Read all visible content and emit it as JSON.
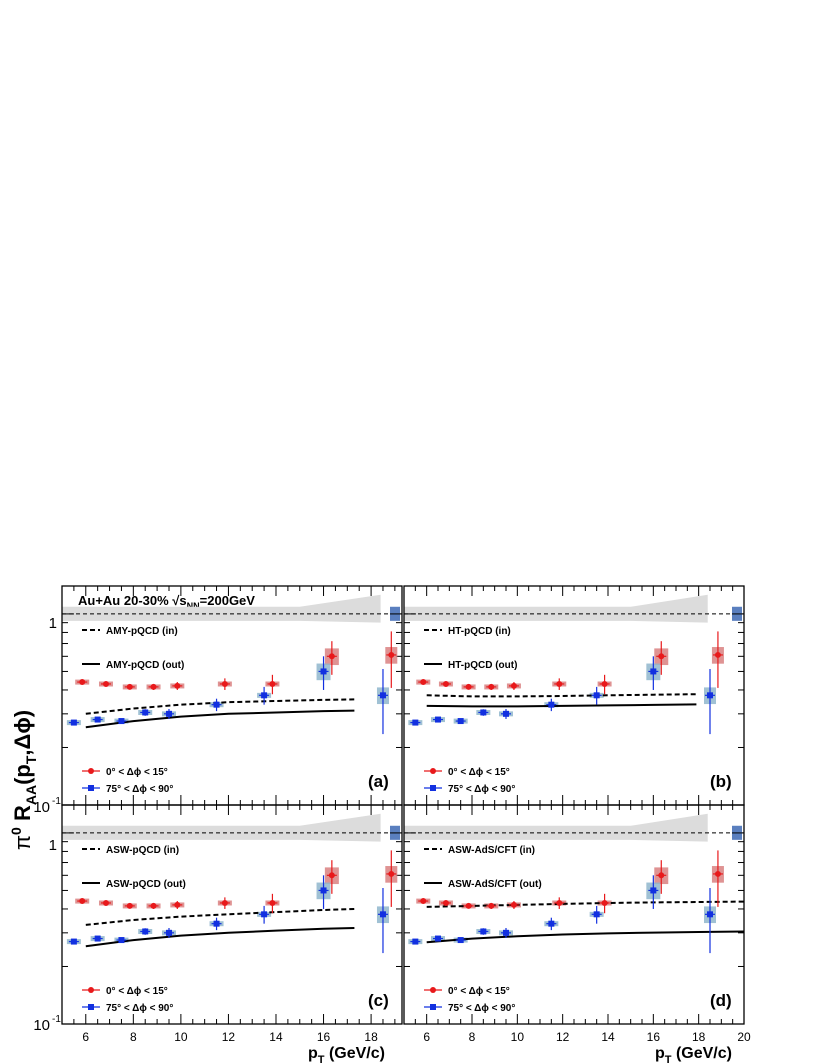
{
  "header": "Au+Au 20-30% √s",
  "header_sub": "NN",
  "header_tail": "=200GeV",
  "ylabel": {
    "pre": "π",
    "sup0": "0",
    "R": " R",
    "AA": "AA",
    "paren": "(p",
    "T": "T",
    "tail": ",Δϕ)"
  },
  "xlabel": {
    "p": "p",
    "T": "T",
    "unit": " (GeV/c)"
  },
  "y_ticks": [
    "1",
    "10",
    "-1"
  ],
  "colors": {
    "in_plane": "#e8191b",
    "out_plane": "#1230e0",
    "sys_in": "#d98080",
    "sys_out": "#8fb6cc",
    "norm_band": "#dcdcdc",
    "norm_box": "#5a7fbf"
  },
  "chart_data": {
    "type": "scatter",
    "yscale": "log",
    "ylim": [
      0.1,
      1.4
    ],
    "xlim_left": [
      5,
      19.3
    ],
    "xlim_right": [
      5,
      20
    ],
    "x_ticks_left": [
      "6",
      "8",
      "10",
      "12",
      "14",
      "16",
      "18"
    ],
    "x_ticks_right": [
      "6",
      "8",
      "10",
      "12",
      "14",
      "16",
      "18",
      "20"
    ],
    "reference_line": 1.0,
    "legend_data": [
      "0° < Δϕ < 15°",
      "75° < Δϕ < 90°"
    ],
    "series_in": {
      "name": "0° < Δϕ < 15°",
      "x": [
        5.5,
        6.5,
        7.5,
        8.5,
        9.5,
        11.5,
        13.5,
        16.0,
        18.5
      ],
      "y": [
        0.44,
        0.43,
        0.415,
        0.415,
        0.42,
        0.43,
        0.43,
        0.6,
        0.61
      ],
      "err": [
        0.008,
        0.01,
        0.012,
        0.015,
        0.02,
        0.03,
        0.05,
        0.12,
        0.2
      ]
    },
    "series_out": {
      "name": "75° < Δϕ < 90°",
      "x": [
        5.5,
        6.5,
        7.5,
        8.5,
        9.5,
        11.5,
        13.5,
        16.0,
        18.5
      ],
      "y": [
        0.27,
        0.28,
        0.275,
        0.305,
        0.3,
        0.335,
        0.375,
        0.5,
        0.375
      ],
      "err": [
        0.005,
        0.008,
        0.008,
        0.012,
        0.018,
        0.025,
        0.04,
        0.1,
        0.14
      ]
    },
    "panels": [
      {
        "label": "(a)",
        "model_in": "AMY-pQCD (in)",
        "model_out": "AMY-pQCD (out)",
        "curve_in": {
          "x": [
            6,
            8,
            10,
            12,
            14,
            16,
            17.3
          ],
          "y": [
            0.3,
            0.32,
            0.335,
            0.345,
            0.35,
            0.355,
            0.357
          ]
        },
        "curve_out": {
          "x": [
            6,
            8,
            10,
            12,
            14,
            16,
            17.3
          ],
          "y": [
            0.255,
            0.275,
            0.29,
            0.3,
            0.305,
            0.31,
            0.312
          ]
        }
      },
      {
        "label": "(b)",
        "model_in": "HT-pQCD (in)",
        "model_out": "HT-pQCD (out)",
        "curve_in": {
          "x": [
            6,
            8,
            10,
            12,
            14,
            16,
            17.9
          ],
          "y": [
            0.375,
            0.37,
            0.37,
            0.372,
            0.375,
            0.378,
            0.38
          ]
        },
        "curve_out": {
          "x": [
            6,
            8,
            10,
            12,
            14,
            16,
            17.9
          ],
          "y": [
            0.33,
            0.328,
            0.328,
            0.33,
            0.332,
            0.334,
            0.336
          ]
        }
      },
      {
        "label": "(c)",
        "model_in": "ASW-pQCD (in)",
        "model_out": "ASW-pQCD (out)",
        "curve_in": {
          "x": [
            6,
            8,
            10,
            12,
            14,
            16,
            17.3
          ],
          "y": [
            0.33,
            0.35,
            0.365,
            0.375,
            0.385,
            0.395,
            0.4
          ]
        },
        "curve_out": {
          "x": [
            6,
            8,
            10,
            12,
            14,
            16,
            17.3
          ],
          "y": [
            0.255,
            0.275,
            0.29,
            0.3,
            0.308,
            0.315,
            0.318
          ]
        }
      },
      {
        "label": "(d)",
        "model_in": "ASW-AdS/CFT (in)",
        "model_out": "ASW-AdS/CFT (out)",
        "curve_in": {
          "x": [
            6,
            8,
            10,
            12,
            14,
            16,
            18,
            20
          ],
          "y": [
            0.41,
            0.415,
            0.42,
            0.425,
            0.43,
            0.433,
            0.435,
            0.437
          ]
        },
        "curve_out": {
          "x": [
            6,
            8,
            10,
            12,
            14,
            16,
            18,
            20
          ],
          "y": [
            0.268,
            0.28,
            0.288,
            0.294,
            0.298,
            0.301,
            0.303,
            0.305
          ]
        }
      }
    ]
  }
}
